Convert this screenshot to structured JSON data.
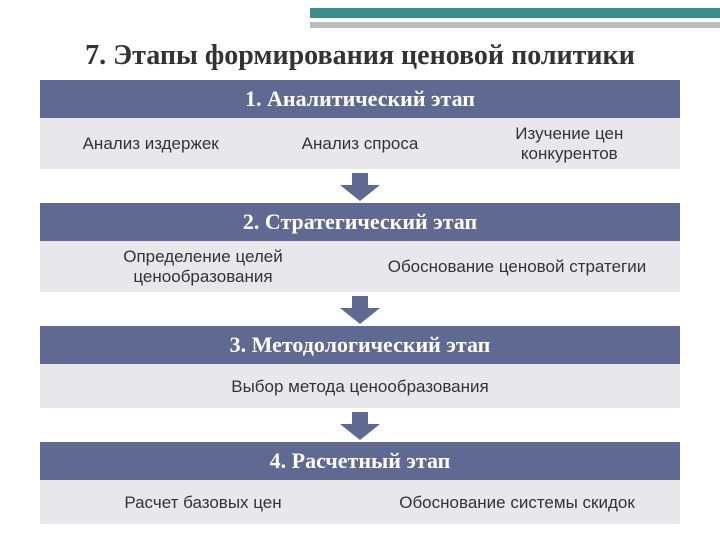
{
  "title": "7. Этапы формирования ценовой политики",
  "colors": {
    "header_bg": "#5f6991",
    "body_bg": "#e8e8ec",
    "arrow_fill": "#5f6991",
    "title_text": "#333333",
    "body_text": "#333333",
    "header_text": "#ffffff",
    "accent_teal": "#3c8e8c",
    "accent_grey": "#bcbcbc"
  },
  "typography": {
    "title_fontsize": 28,
    "stage_header_fontsize": 22,
    "body_fontsize": 17
  },
  "stages": [
    {
      "header": "1. Аналитический этап",
      "items": [
        "Анализ издержек",
        "Анализ спроса",
        "Изучение цен конкурентов"
      ]
    },
    {
      "header": "2. Стратегический этап",
      "items": [
        "Определение целей ценообразования",
        "Обоснование ценовой стратегии"
      ]
    },
    {
      "header": "3. Методологический этап",
      "items": [
        "Выбор метода ценообразования"
      ]
    },
    {
      "header": "4. Расчетный этап",
      "items": [
        "Расчет базовых цен",
        "Обоснование системы скидок"
      ]
    }
  ]
}
